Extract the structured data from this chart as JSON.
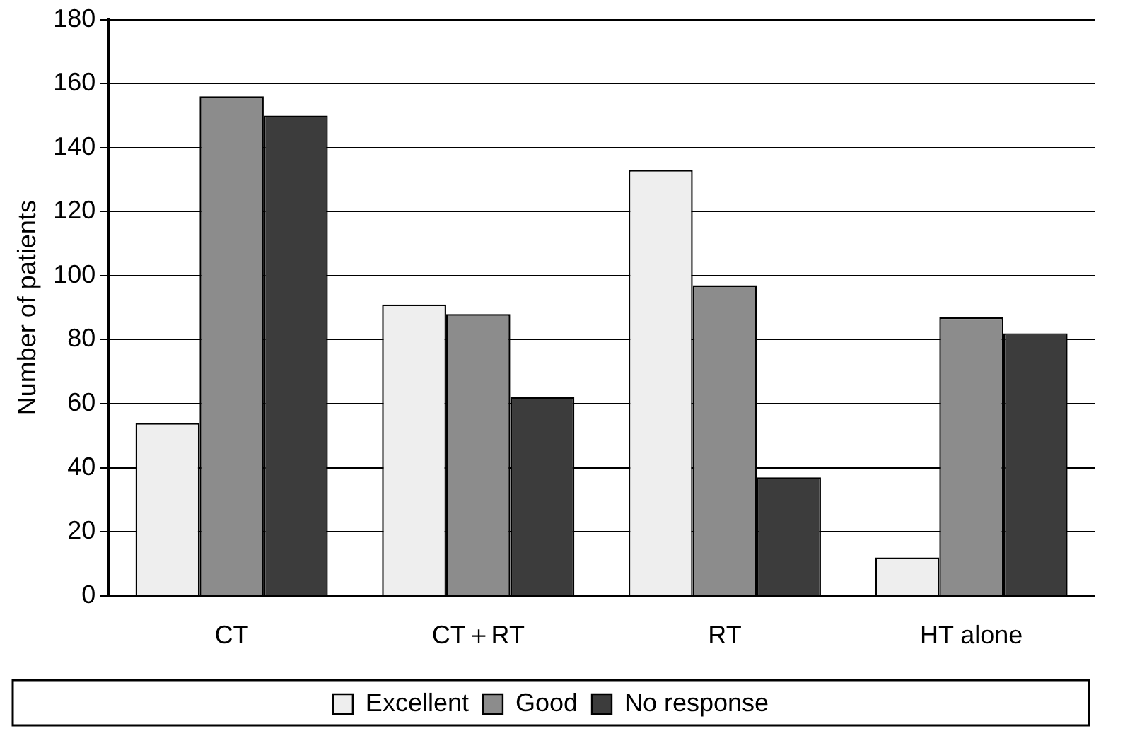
{
  "chart_data": {
    "type": "bar",
    "ylabel": "Number of patients",
    "categories": [
      "CT",
      "CT＋RT",
      "RT",
      "HT alone"
    ],
    "series": [
      {
        "name": "Excellent",
        "color": "#eeeeee",
        "values": [
          54,
          91,
          133,
          12
        ]
      },
      {
        "name": "Good",
        "color": "#8c8c8c",
        "values": [
          156,
          88,
          97,
          87
        ]
      },
      {
        "name": "No response",
        "color": "#3c3c3c",
        "values": [
          150,
          62,
          37,
          82
        ]
      }
    ],
    "ylim": [
      0,
      180
    ],
    "yticks": [
      0,
      20,
      40,
      60,
      80,
      100,
      120,
      140,
      160,
      180
    ],
    "grid": "y",
    "legend": "bottom"
  }
}
